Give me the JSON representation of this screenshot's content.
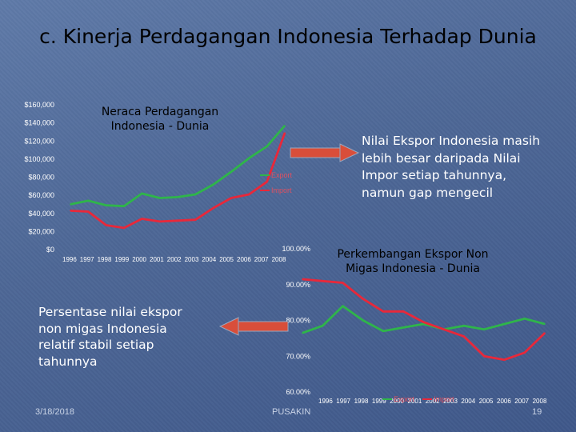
{
  "slide": {
    "title": "c. Kinerja Perdagangan Indonesia Terhadap Dunia",
    "note_right": [
      "Nilai Ekspor Indonesia masih",
      "lebih besar daripada Nilai",
      "Impor setiap tahunnya,",
      "namun gap mengecil"
    ],
    "note_left": [
      "Persentase nilai ekspor",
      "non migas Indonesia",
      "relatif stabil setiap",
      "tahunnya"
    ],
    "footer_date": "3/18/2018",
    "footer_org": "PUSAKIN",
    "page_number": "19"
  },
  "colors": {
    "export": "#2fb54a",
    "import": "#e8283a",
    "title_text": "#000000",
    "arrow": "#d94e3a"
  },
  "icons": [
    "arrow-right-icon",
    "arrow-left-icon"
  ],
  "chart_data": [
    {
      "type": "line",
      "title": "Neraca Perdagangan Indonesia - Dunia",
      "x": [
        "1996",
        "1997",
        "1998",
        "1999",
        "2000",
        "2001",
        "2002",
        "2003",
        "2004",
        "2005",
        "2006",
        "2007",
        "2008"
      ],
      "yticks": [
        "$160,000",
        "$140,000",
        "$120,000",
        "$100,000",
        "$80,000",
        "$60,000",
        "$40,000",
        "$20,000",
        "$0"
      ],
      "ylim": [
        0,
        160000
      ],
      "legend": "right",
      "series": [
        {
          "name": "Export",
          "values": [
            50000,
            54000,
            49000,
            48000,
            62000,
            57000,
            58000,
            61000,
            72000,
            86000,
            101000,
            114000,
            137000
          ]
        },
        {
          "name": "Import",
          "values": [
            43000,
            42000,
            27000,
            24000,
            34000,
            31000,
            32000,
            33000,
            46000,
            57000,
            61000,
            75000,
            129000
          ]
        }
      ]
    },
    {
      "type": "line",
      "title": "Perkembangan Ekspor Non Migas Indonesia - Dunia",
      "x": [
        "1996",
        "1997",
        "1998",
        "1999",
        "2000",
        "2001",
        "2002",
        "2003",
        "2004",
        "2005",
        "2006",
        "2007",
        "2008"
      ],
      "yticks": [
        "100.00%",
        "90.00%",
        "80.00%",
        "70.00%",
        "60.00%"
      ],
      "ylim": [
        60,
        100
      ],
      "legend": "bottom",
      "series": [
        {
          "name": "Export",
          "values": [
            76.5,
            78.5,
            84.0,
            80.0,
            77.0,
            78.0,
            79.0,
            77.5,
            78.5,
            77.5,
            79.0,
            80.5,
            79.0
          ]
        },
        {
          "name": "Import",
          "values": [
            91.5,
            91.0,
            90.5,
            86.0,
            82.5,
            82.5,
            79.5,
            77.5,
            75.5,
            70.0,
            69.0,
            71.0,
            76.5
          ]
        }
      ]
    }
  ]
}
